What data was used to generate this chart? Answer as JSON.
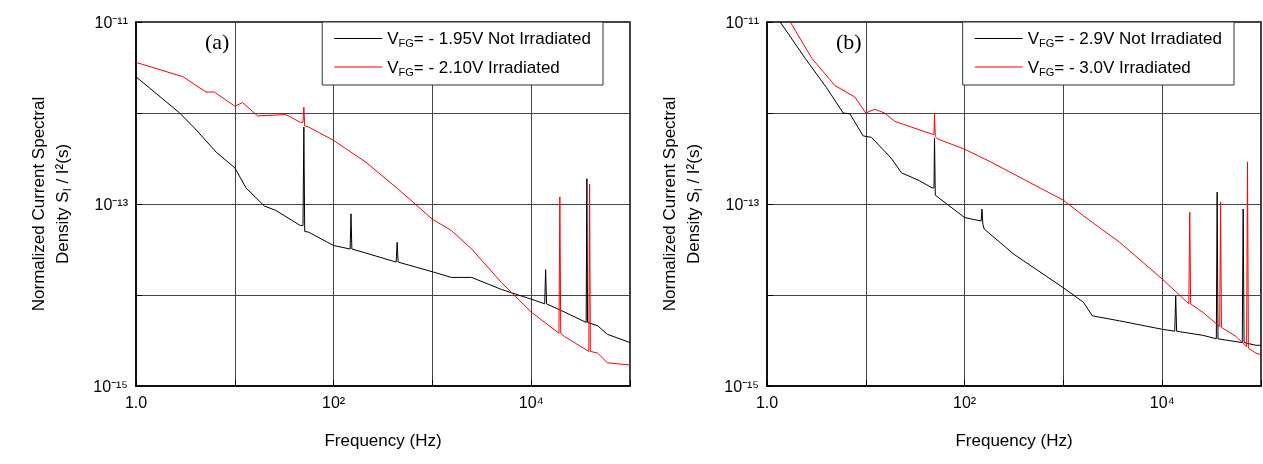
{
  "chart_data": [
    {
      "type": "line",
      "xlabel": "Frequency (Hz)",
      "ylabel": "Normalized Current Spectral\nDensity S$_{I}$ / I²(s)",
      "annotations": [
        "(a)"
      ],
      "log": "xy",
      "grid": true,
      "legend": "top right",
      "xlim": [
        1,
        100000
      ],
      "ylim": [
        1e-15,
        1e-11
      ],
      "xticks": [
        {
          "value": 1,
          "label": "1.0"
        },
        {
          "value": 10,
          "label": null
        },
        {
          "value": 100,
          "label": "10²"
        },
        {
          "value": 1000,
          "label": null
        },
        {
          "value": 10000,
          "label": "10⁴"
        },
        {
          "value": 100000,
          "label": null
        }
      ],
      "yticks": [
        {
          "value": 1e-11,
          "label": "10⁻¹¹"
        },
        {
          "value": 1e-12,
          "label": null
        },
        {
          "value": 1e-13,
          "label": "10⁻¹³"
        },
        {
          "value": 1e-14,
          "label": null
        },
        {
          "value": 1e-15,
          "label": "10⁻¹⁵"
        }
      ],
      "series": [
        {
          "name": "V$_{FG}$= - 1.95V Not Irradiated",
          "color": "#000000",
          "x": [
            1,
            2.77,
            4.08,
            6.5,
            10,
            13,
            19.9,
            26,
            46,
            49,
            50,
            51,
            56,
            100,
            147,
            150,
            153,
            210,
            430,
            440,
            450,
            1000,
            1560,
            2500,
            5000,
            10000,
            13700,
            14000,
            14300,
            21700,
            36000,
            36600,
            37200,
            47000,
            59000,
            100000
          ],
          "values": [
            2.5e-12,
            1e-12,
            6.5e-13,
            3.7e-13,
            2.5e-13,
            1.5e-13,
            9.5e-14,
            8.5e-14,
            5.8e-14,
            5.8e-14,
            7e-13,
            5e-14,
            4.9e-14,
            3.5e-14,
            3.2e-14,
            7.8e-14,
            3.2e-14,
            2.9e-14,
            2.3e-14,
            3.8e-14,
            2.3e-14,
            1.8e-14,
            1.56e-14,
            1.56e-14,
            1.15e-14,
            9e-15,
            8e-15,
            1.9e-14,
            8e-15,
            6.5e-15,
            5e-15,
            1.9e-13,
            5e-15,
            4.6e-15,
            3.7e-15,
            3e-15
          ]
        },
        {
          "name": "V$_{FG}$= - 2.10V Irradiated",
          "color": "#ff0000",
          "x": [
            1,
            3,
            5.1,
            6.2,
            10,
            12,
            17,
            33,
            46,
            49,
            50,
            51,
            56,
            100,
            210,
            450,
            1000,
            1560,
            2500,
            5000,
            10000,
            19100,
            19500,
            19900,
            21700,
            38300,
            39000,
            39700,
            47000,
            59000,
            100000
          ],
          "values": [
            3.6e-12,
            2.5e-12,
            1.7e-12,
            1.7e-12,
            1.19e-12,
            1.3e-12,
            9.3e-13,
            9.6e-13,
            7.9e-13,
            7.9e-13,
            1.16e-12,
            7.2e-13,
            7e-13,
            5e-13,
            2.9e-13,
            1.46e-13,
            6.8e-14,
            5.1e-14,
            3.2e-14,
            1.37e-14,
            6.5e-15,
            3.8e-15,
            1.2e-13,
            3.8e-15,
            3.5e-15,
            2.4e-15,
            1.66e-13,
            2.4e-15,
            2.3e-15,
            1.8e-15,
            1.7e-15
          ]
        }
      ]
    },
    {
      "type": "line",
      "xlabel": "Frequency (Hz)",
      "ylabel": "Normalized Current Spectral\nDensity S$_{I}$ / I²(s)",
      "annotations": [
        "(b)"
      ],
      "log": "xy",
      "grid": true,
      "legend": "top right",
      "xlim": [
        1,
        100000
      ],
      "ylim": [
        1e-15,
        1e-11
      ],
      "xticks": [
        {
          "value": 1,
          "label": "1.0"
        },
        {
          "value": 10,
          "label": null
        },
        {
          "value": 100,
          "label": "10²"
        },
        {
          "value": 1000,
          "label": null
        },
        {
          "value": 10000,
          "label": "10⁴"
        },
        {
          "value": 100000,
          "label": null
        }
      ],
      "yticks": [
        {
          "value": 1e-11,
          "label": "10⁻¹¹"
        },
        {
          "value": 1e-12,
          "label": null
        },
        {
          "value": 1e-13,
          "label": "10⁻¹³"
        },
        {
          "value": 1e-14,
          "label": null
        },
        {
          "value": 1e-15,
          "label": "10⁻¹⁵"
        }
      ],
      "series": [
        {
          "name": "V$_{FG}$= - 2.9V Not Irradiated",
          "color": "#000000",
          "x": [
            1.36,
            2.43,
            4.0,
            5.9,
            6.9,
            9.4,
            11.4,
            18,
            23,
            35,
            47,
            49,
            49.6,
            50.5,
            53,
            100,
            147,
            150,
            153,
            158,
            316,
            1000,
            1600,
            1960,
            3700,
            10000,
            13400,
            13700,
            14000,
            26000,
            35300,
            36000,
            36700,
            44000,
            64600,
            66000,
            67400,
            89000,
            100000
          ],
          "values": [
            1e-11,
            4e-12,
            1.9e-12,
            1e-12,
            9.8e-13,
            5.6e-13,
            5.4e-13,
            3.2e-13,
            2.2e-13,
            1.8e-13,
            1.5e-13,
            1.5e-13,
            5.3e-13,
            1.25e-13,
            1.2e-13,
            7.1e-14,
            6.5e-14,
            8.8e-14,
            6e-14,
            5.3e-14,
            2.8e-14,
            1.2e-14,
            8.3e-15,
            5.9e-15,
            5.2e-15,
            4.2e-15,
            4e-15,
            9.7e-15,
            4e-15,
            3.6e-15,
            3.3e-15,
            1.35e-13,
            3.3e-15,
            3.2e-15,
            3e-15,
            8.8e-14,
            3e-15,
            2.8e-15,
            2.8e-15
          ]
        },
        {
          "name": "V$_{FG}$= - 3.0V Irradiated",
          "color": "#ff0000",
          "x": [
            1.72,
            2.84,
            4.87,
            7.75,
            10,
            12.3,
            15.5,
            19.6,
            45.8,
            49,
            49.6,
            50.5,
            53,
            100,
            184,
            466,
            1000,
            1600,
            3700,
            10000,
            18600,
            19000,
            19400,
            26000,
            38200,
            39000,
            39800,
            56000,
            71500,
            73000,
            74500,
            89000,
            100000
          ],
          "values": [
            1e-11,
            4e-12,
            2e-12,
            1.5e-12,
            1e-12,
            1.1e-12,
            1e-12,
            8.1e-13,
            5.9e-13,
            5.8e-13,
            9.8e-13,
            5.5e-13,
            5.2e-13,
            4e-13,
            2.9e-13,
            1.7e-13,
            1.1e-13,
            7.4e-14,
            3.8e-14,
            1.5e-14,
            8e-15,
            8.1e-14,
            8e-15,
            6.4e-15,
            4.5e-15,
            1.05e-13,
            4.4e-15,
            3.5e-15,
            2.7e-15,
            2.9e-13,
            2.6e-15,
            2.3e-15,
            2.2e-15
          ]
        }
      ]
    }
  ]
}
